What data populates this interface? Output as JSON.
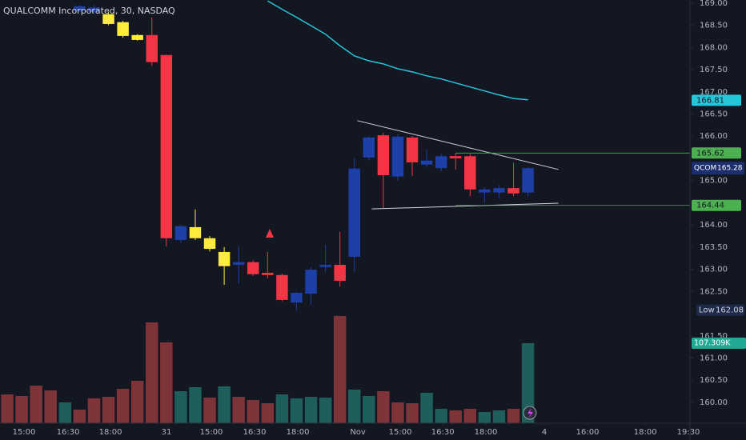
{
  "chart_data": {
    "type": "candlestick",
    "title": "QUALCOMM Incorporated, 30, NASDAQ",
    "xlim": [
      -0.5,
      47.2
    ],
    "ylim": [
      159.53,
      169.07
    ],
    "yticks": [
      {
        "value": 169,
        "label": "169.00"
      },
      {
        "value": 168.5,
        "label": "168.50"
      },
      {
        "value": 168,
        "label": "168.00"
      },
      {
        "value": 167.5,
        "label": "167.50"
      },
      {
        "value": 167,
        "label": "167.00"
      },
      {
        "value": 166.5,
        "label": "166.50"
      },
      {
        "value": 166,
        "label": "166.00"
      },
      {
        "value": 165,
        "label": "165.00"
      },
      {
        "value": 164,
        "label": "164.00"
      },
      {
        "value": 163.5,
        "label": "163.50"
      },
      {
        "value": 163,
        "label": "163.00"
      },
      {
        "value": 162.5,
        "label": "162.50"
      },
      {
        "value": 161.5,
        "label": "161.50"
      },
      {
        "value": 161,
        "label": "161.00"
      },
      {
        "value": 160.5,
        "label": "160.50"
      },
      {
        "value": 160,
        "label": "160.00"
      }
    ],
    "xticks": [
      {
        "value": 1.16,
        "label": "15:00"
      },
      {
        "value": 4.21,
        "label": "16:30"
      },
      {
        "value": 7.14,
        "label": "18:00"
      },
      {
        "value": 11.01,
        "label": "31"
      },
      {
        "value": 14.11,
        "label": "15:00"
      },
      {
        "value": 17.1,
        "label": "16:30"
      },
      {
        "value": 20.09,
        "label": "18:00"
      },
      {
        "value": 24.24,
        "label": "Nov"
      },
      {
        "value": 27.17,
        "label": "15:00"
      },
      {
        "value": 30.11,
        "label": "16:30"
      },
      {
        "value": 33.09,
        "label": "18:00"
      },
      {
        "value": 37.13,
        "label": "4"
      },
      {
        "value": 40.12,
        "label": "16:00"
      },
      {
        "value": 44.11,
        "label": "18:00"
      },
      {
        "value": 47.09,
        "label": "19:30"
      }
    ],
    "open": [
      null,
      null,
      null,
      null,
      null,
      168.82,
      168.8,
      168.75,
      168.57,
      168.28,
      168.28,
      167.83,
      163.66,
      163.95,
      163.7,
      163.39,
      163.1,
      163.16,
      162.92,
      162.87,
      162.25,
      162.45,
      163.05,
      163.1,
      163.28,
      165.52,
      166.02,
      165.09,
      165.97,
      165.36,
      165.28,
      165.55,
      165.55,
      164.73,
      164.73,
      164.83,
      164.73
    ],
    "high": [
      null,
      null,
      null,
      null,
      null,
      168.95,
      168.95,
      168.8,
      168.6,
      168.3,
      168.68,
      167.83,
      164.0,
      164.35,
      163.75,
      163.5,
      163.52,
      163.2,
      163.39,
      162.9,
      162.5,
      163.05,
      163.55,
      163.84,
      165.5,
      166.0,
      166.08,
      166.05,
      166.0,
      165.7,
      165.6,
      165.62,
      165.6,
      164.85,
      164.9,
      165.4,
      165.3
    ],
    "low": [
      null,
      null,
      null,
      null,
      null,
      168.8,
      168.75,
      168.5,
      168.22,
      168.15,
      167.59,
      163.52,
      163.6,
      163.66,
      163.4,
      162.65,
      162.67,
      162.85,
      162.8,
      162.28,
      162.08,
      162.2,
      162.95,
      162.61,
      162.94,
      165.45,
      164.38,
      165.0,
      165.1,
      165.3,
      165.2,
      165.25,
      164.65,
      164.5,
      164.6,
      164.65,
      164.65
    ],
    "close": [
      null,
      null,
      null,
      null,
      null,
      168.93,
      168.9,
      168.53,
      168.26,
      168.17,
      167.67,
      163.7,
      163.97,
      163.7,
      163.46,
      163.07,
      163.16,
      162.89,
      162.87,
      162.31,
      162.47,
      162.99,
      163.1,
      162.74,
      165.27,
      165.97,
      165.12,
      165.99,
      165.41,
      165.45,
      165.55,
      165.5,
      164.8,
      164.8,
      164.83,
      164.71,
      165.28
    ],
    "candle_colors": [
      null,
      null,
      null,
      null,
      null,
      "#1c3fa8",
      "#1c3fa8",
      "#ffeb3b",
      "#ffeb3b",
      "#ffeb3b",
      "#f23645",
      "#f23645",
      "#1c3fa8",
      "#ffeb3b",
      "#ffeb3b",
      "#ffeb3b",
      "#1c3fa8",
      "#f23645",
      "#f23645",
      "#f23645",
      "#1c3fa8",
      "#1c3fa8",
      "#1c3fa8",
      "#f23645",
      "#1c3fa8",
      "#1c3fa8",
      "#f23645",
      "#1c3fa8",
      "#f23645",
      "#1c3fa8",
      "#1c3fa8",
      "#f23645",
      "#f23645",
      "#1c3fa8",
      "#1c3fa8",
      "#f23645",
      "#1c3fa8"
    ],
    "ma": {
      "color": "#26c6da",
      "values": [
        null,
        null,
        null,
        null,
        null,
        null,
        null,
        null,
        null,
        null,
        null,
        null,
        null,
        null,
        null,
        null,
        null,
        null,
        169.05,
        168.86,
        168.68,
        168.49,
        168.3,
        168.04,
        167.81,
        167.7,
        167.63,
        167.52,
        167.45,
        167.36,
        167.29,
        167.2,
        167.11,
        167.02,
        166.93,
        166.85,
        166.82
      ]
    },
    "vlim": [
      0,
      567.6
    ],
    "volume": [
      38.6,
      36.5,
      50.4,
      44.0,
      27.9,
      18.2,
      33.3,
      35.4,
      46.1,
      56.9,
      135.2,
      108.4,
      42.9,
      48.3,
      34.3,
      49.4,
      35.4,
      31.1,
      26.8,
      38.6,
      33.3,
      35.4,
      34.3,
      143.8,
      45.1,
      36.5,
      42.9,
      27.9,
      26.8,
      40.8,
      19.3,
      17.2,
      19.3,
      15.0,
      17.2,
      19.3,
      107.309
    ],
    "volume_colors": [
      "#7d3337",
      "#7d3337",
      "#7d3337",
      "#7d3337",
      "#1f5f5b",
      "#7d3337",
      "#7d3337",
      "#7d3337",
      "#7d3337",
      "#7d3337",
      "#7d3337",
      "#7d3337",
      "#1f5f5b",
      "#1f5f5b",
      "#7d3337",
      "#1f5f5b",
      "#7d3337",
      "#7d3337",
      "#7d3337",
      "#1f5f5b",
      "#1f5f5b",
      "#1f5f5b",
      "#1f5f5b",
      "#7d3337",
      "#1f5f5b",
      "#1f5f5b",
      "#7d3337",
      "#7d3337",
      "#7d3337",
      "#1f5f5b",
      "#1f5f5b",
      "#7d3337",
      "#7d3337",
      "#1f5f5b",
      "#1f5f5b",
      "#7d3337",
      "#1f5f5b"
    ],
    "volume_label": "107.309K",
    "ma_last": 166.81,
    "levels": [
      {
        "value": 165.62,
        "color": "#4caf50"
      },
      {
        "value": 164.44,
        "color": "#4caf50"
      }
    ],
    "last_price": {
      "symbol": "QCOM",
      "value": 165.28
    },
    "low_marker": {
      "label": "Low",
      "value": 162.08
    },
    "trendlines": [
      {
        "x": [
          24.2,
          38.1
        ],
        "y": [
          166.35,
          165.25
        ]
      },
      {
        "x": [
          25.2,
          38.1
        ],
        "y": [
          164.36,
          164.49
        ]
      }
    ]
  }
}
